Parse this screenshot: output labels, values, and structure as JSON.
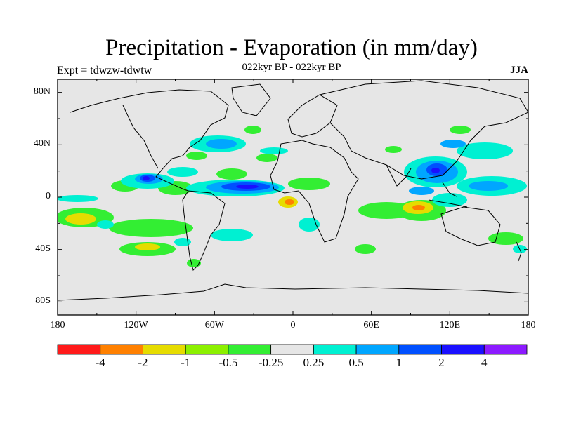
{
  "title": "Precipitation - Evaporation (in mm/day)",
  "subtitle": "022kyr BP - 022kyr BP",
  "experiment": "Expt = tdwzw-tdwtw",
  "season": "JJA",
  "map": {
    "ocean_color": "#e6e6e6",
    "coast_color": "#000000",
    "lat_ticks": [
      "80N",
      "40N",
      "0",
      "40S",
      "80S"
    ],
    "lat_values": [
      80,
      40,
      0,
      -40,
      -80
    ],
    "lon_ticks": [
      "180",
      "120W",
      "60W",
      "0",
      "60E",
      "120E",
      "180"
    ],
    "lon_values": [
      -180,
      -120,
      -60,
      0,
      60,
      120,
      180
    ]
  },
  "colorbar": {
    "colors": [
      "#ff1a1a",
      "#ff8000",
      "#e6dc00",
      "#8cf000",
      "#33ee33",
      "#e6e6e6",
      "#00f0d2",
      "#00a6ff",
      "#0050ff",
      "#1a10ff",
      "#8c1aff"
    ],
    "labels": [
      "-4",
      "-2",
      "-1",
      "-0.5",
      "-0.25",
      "0.25",
      "0.5",
      "1",
      "2",
      "4"
    ]
  }
}
